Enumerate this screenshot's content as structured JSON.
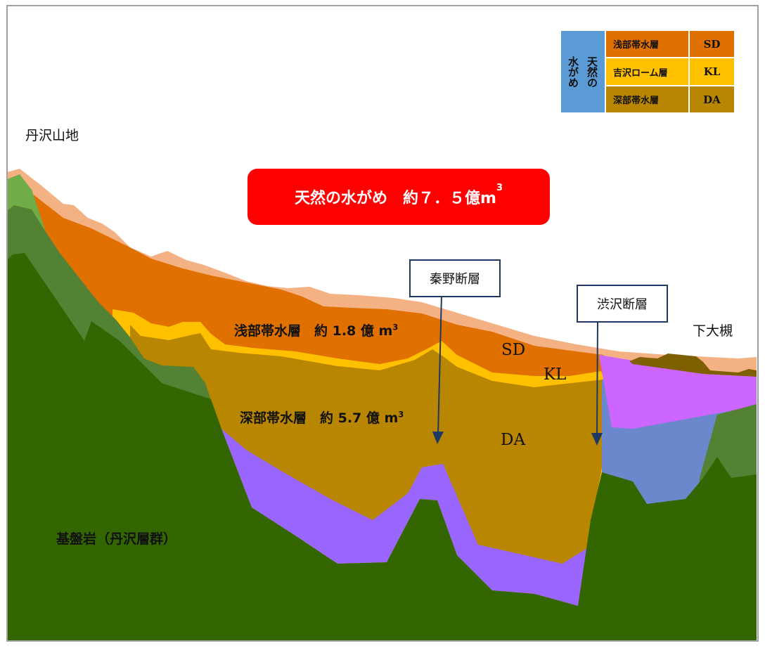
{
  "colors": {
    "frame": "#a0a0a0",
    "soil": "#f4b183",
    "sd": "#e07000",
    "kl": "#ffc000",
    "da": "#b88600",
    "lower_aquifer": "#9966ff",
    "right_upper": "#cc66ff",
    "right_lower": "#6b88cc",
    "right_cap": "#7f6000",
    "bedrock_dark": "#336600",
    "bedrock_mid": "#548235",
    "bedrock_light": "#70ad47",
    "banner": "#ff0000",
    "legend_blue": "#5b9bd5",
    "arrow": "#203864"
  },
  "labels": {
    "tanzawa": "丹沢山地",
    "shimo": "下大槻",
    "bedrock": "基盤岩（丹沢層群）",
    "shallow": "浅部帯水層　約 1.8 億 m",
    "shallow_sup": "3",
    "deep": "深部帯水層　約 5.7 億 m",
    "deep_sup": "3",
    "sd": "SD",
    "kl": "KL",
    "da": "DA"
  },
  "banner": {
    "text": "天然の水がめ　約７．５億m",
    "sup": "3"
  },
  "faults": [
    {
      "label": "秦野断層"
    },
    {
      "label": "渋沢断層"
    }
  ],
  "legend": {
    "group": "天然の水がめ",
    "group_col1": "天然の",
    "group_col2": "水がめ",
    "rows": [
      {
        "name": "浅部帯水層",
        "code": "SD",
        "color": "#e07000"
      },
      {
        "name": "吉沢ローム層",
        "code": "KL",
        "color": "#ffc000"
      },
      {
        "name": "深部帯水層",
        "code": "DA",
        "color": "#b88600"
      }
    ]
  }
}
